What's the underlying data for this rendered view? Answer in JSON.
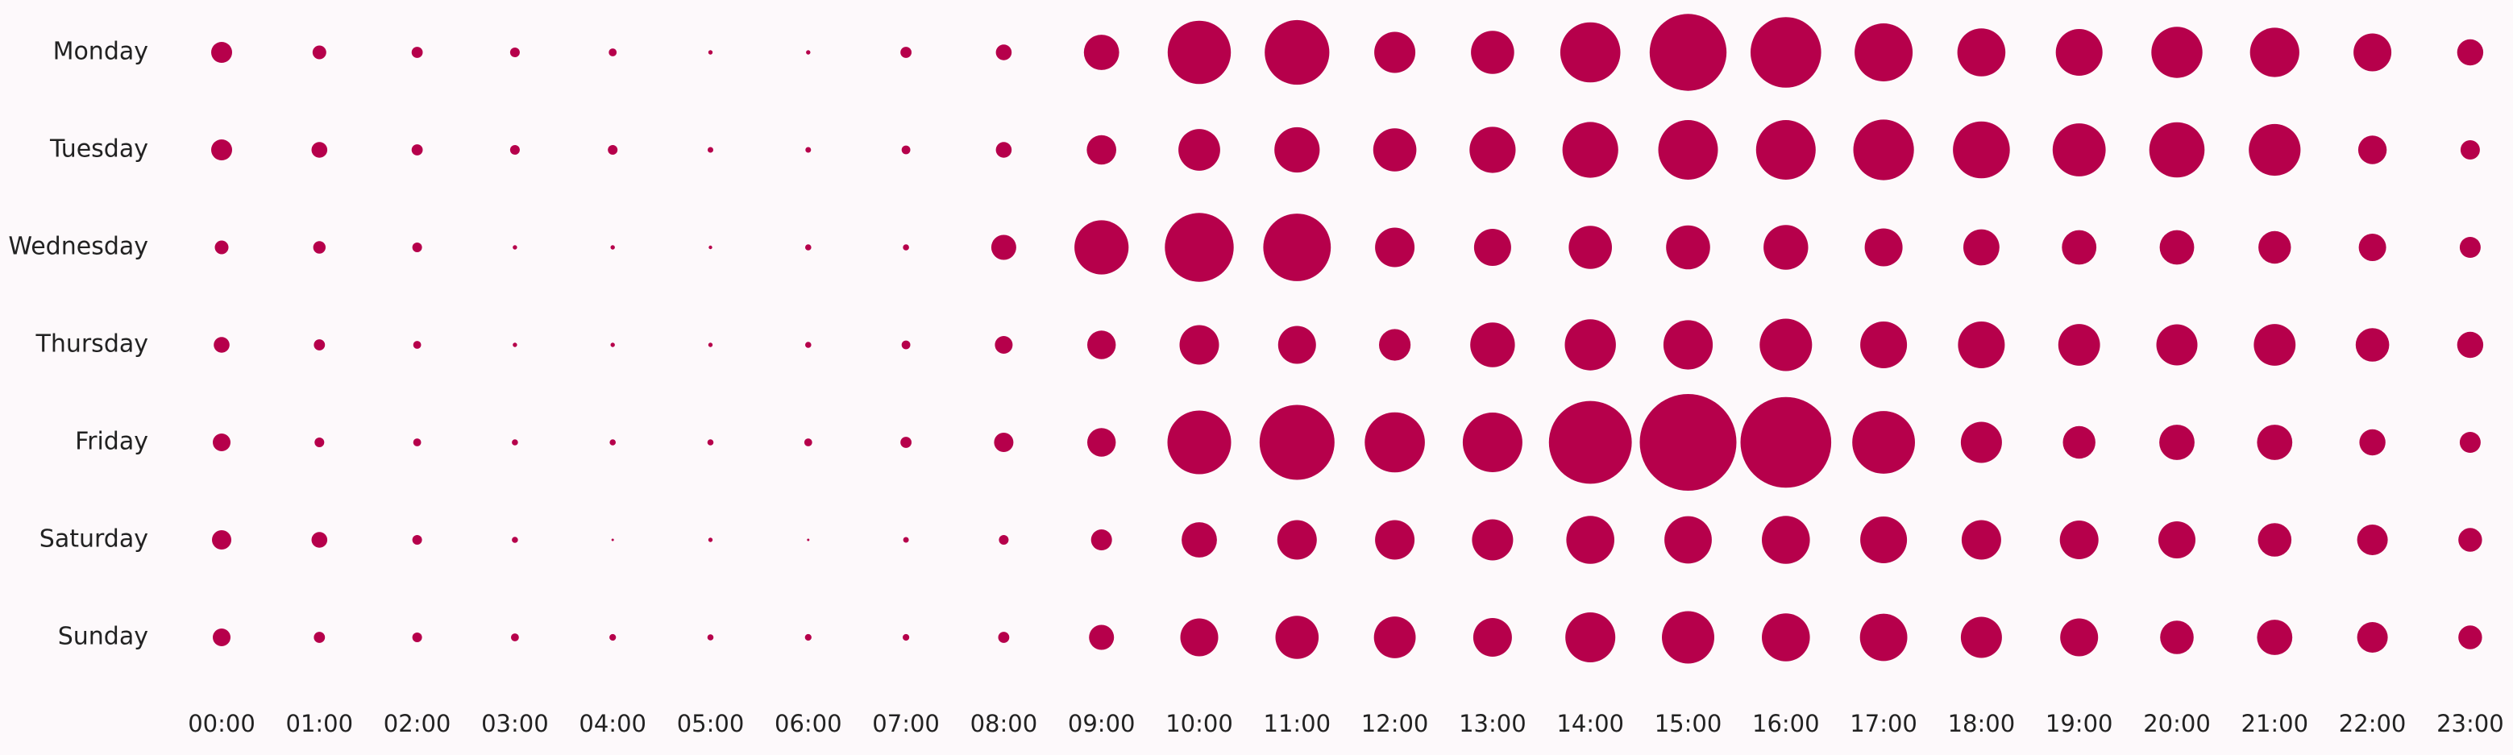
{
  "chart_data": {
    "type": "scatter",
    "subtype": "punch-card",
    "title": "",
    "xlabel": "",
    "ylabel": "",
    "x": [
      "00:00",
      "01:00",
      "02:00",
      "03:00",
      "04:00",
      "05:00",
      "06:00",
      "07:00",
      "08:00",
      "09:00",
      "10:00",
      "11:00",
      "12:00",
      "13:00",
      "14:00",
      "15:00",
      "16:00",
      "17:00",
      "18:00",
      "19:00",
      "20:00",
      "21:00",
      "22:00",
      "23:00"
    ],
    "y": [
      "Monday",
      "Tuesday",
      "Wednesday",
      "Thursday",
      "Friday",
      "Saturday",
      "Sunday"
    ],
    "values": [
      [
        7,
        3,
        2,
        1.5,
        1,
        0.3,
        0.3,
        2,
        4,
        20,
        64,
        67,
        27,
        30,
        58,
        95,
        80,
        54,
        37,
        35,
        42,
        39,
        23,
        11
      ],
      [
        7,
        4,
        2,
        1.5,
        1.5,
        0.5,
        0.5,
        1.2,
        4,
        14,
        28,
        33,
        30,
        34,
        50,
        57,
        57,
        59,
        52,
        45,
        49,
        43,
        13,
        6
      ],
      [
        3,
        2.5,
        1.5,
        0.3,
        0.3,
        0.2,
        0.6,
        0.6,
        10,
        47,
        76,
        73,
        25,
        22,
        30,
        31,
        32,
        23,
        21,
        19,
        19,
        17,
        12,
        7
      ],
      [
        4,
        2,
        1,
        0.3,
        0.3,
        0.3,
        0.6,
        1.2,
        5,
        13,
        25,
        23,
        16,
        32,
        42,
        39,
        44,
        35,
        35,
        28,
        27,
        28,
        18,
        11
      ],
      [
        5,
        1.5,
        1,
        0.6,
        0.6,
        0.6,
        1,
        2,
        6,
        13,
        65,
        90,
        58,
        57,
        110,
        150,
        132,
        63,
        27,
        17,
        20,
        20,
        11,
        7
      ],
      [
        6,
        4,
        1.5,
        0.6,
        0.1,
        0.3,
        0.1,
        0.5,
        1.5,
        7,
        20,
        25,
        25,
        27,
        37,
        36,
        37,
        35,
        25,
        24,
        22,
        18,
        15,
        9
      ],
      [
        5,
        2,
        1.5,
        1,
        0.7,
        0.6,
        0.7,
        0.7,
        2,
        10,
        23,
        30,
        28,
        24,
        40,
        44,
        37,
        36,
        27,
        23,
        18,
        20,
        15,
        9
      ]
    ],
    "max_value": 150,
    "marker_color": "#b6004b",
    "grid": false,
    "legend": "none"
  }
}
